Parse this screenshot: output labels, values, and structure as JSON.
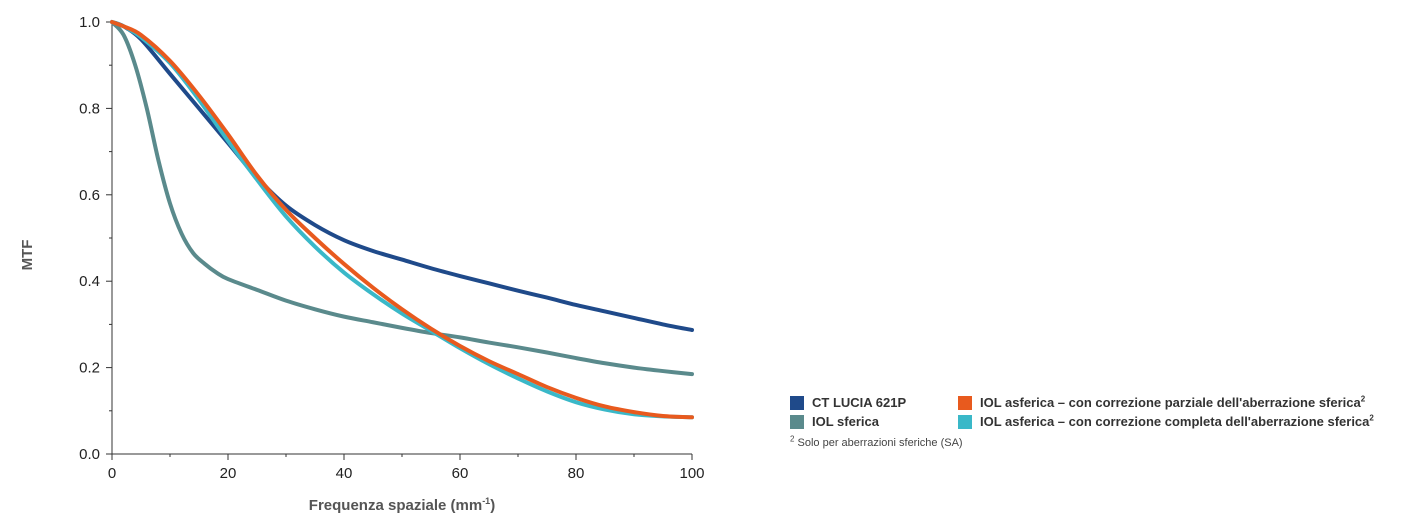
{
  "chart_data": {
    "type": "line",
    "xlabel": "Frequenza spaziale (mm",
    "xlabel_sup": "-1",
    "xlabel_suffix": ")",
    "ylabel": "MTF",
    "xlim": [
      0,
      100
    ],
    "ylim": [
      0,
      1
    ],
    "x_ticks": [
      "0",
      "20",
      "40",
      "60",
      "80",
      "100"
    ],
    "y_ticks": [
      "0.0",
      "0.2",
      "0.4",
      "0.6",
      "0.8",
      "1.0"
    ],
    "grid": false,
    "series": [
      {
        "name": "CT LUCIA 621P",
        "color": "#1f4a8a",
        "points": [
          [
            0,
            1.0
          ],
          [
            2,
            0.99
          ],
          [
            5,
            0.96
          ],
          [
            10,
            0.88
          ],
          [
            15,
            0.8
          ],
          [
            20,
            0.72
          ],
          [
            25,
            0.64
          ],
          [
            30,
            0.575
          ],
          [
            35,
            0.53
          ],
          [
            40,
            0.495
          ],
          [
            45,
            0.47
          ],
          [
            50,
            0.45
          ],
          [
            55,
            0.43
          ],
          [
            60,
            0.412
          ],
          [
            65,
            0.395
          ],
          [
            70,
            0.378
          ],
          [
            75,
            0.362
          ],
          [
            80,
            0.345
          ],
          [
            85,
            0.33
          ],
          [
            90,
            0.315
          ],
          [
            95,
            0.3
          ],
          [
            100,
            0.287
          ]
        ]
      },
      {
        "name": "IOL sferica",
        "color": "#5a8a8c",
        "points": [
          [
            0,
            1.0
          ],
          [
            2,
            0.97
          ],
          [
            4,
            0.9
          ],
          [
            6,
            0.8
          ],
          [
            8,
            0.68
          ],
          [
            10,
            0.58
          ],
          [
            12,
            0.51
          ],
          [
            14,
            0.465
          ],
          [
            16,
            0.44
          ],
          [
            18,
            0.42
          ],
          [
            20,
            0.405
          ],
          [
            25,
            0.38
          ],
          [
            30,
            0.355
          ],
          [
            35,
            0.335
          ],
          [
            40,
            0.318
          ],
          [
            45,
            0.305
          ],
          [
            50,
            0.292
          ],
          [
            55,
            0.28
          ],
          [
            60,
            0.27
          ],
          [
            65,
            0.258
          ],
          [
            70,
            0.247
          ],
          [
            75,
            0.235
          ],
          [
            80,
            0.222
          ],
          [
            85,
            0.21
          ],
          [
            90,
            0.2
          ],
          [
            95,
            0.192
          ],
          [
            100,
            0.185
          ]
        ]
      },
      {
        "name": "IOL asferica – con correzione parziale dell'aberrazione sferica",
        "name_sup": "2",
        "color": "#e85a1e",
        "points": [
          [
            0,
            1.0
          ],
          [
            2,
            0.99
          ],
          [
            5,
            0.97
          ],
          [
            10,
            0.91
          ],
          [
            15,
            0.83
          ],
          [
            20,
            0.74
          ],
          [
            25,
            0.645
          ],
          [
            30,
            0.565
          ],
          [
            35,
            0.5
          ],
          [
            40,
            0.44
          ],
          [
            45,
            0.385
          ],
          [
            50,
            0.335
          ],
          [
            55,
            0.29
          ],
          [
            60,
            0.25
          ],
          [
            65,
            0.215
          ],
          [
            70,
            0.185
          ],
          [
            75,
            0.155
          ],
          [
            80,
            0.13
          ],
          [
            85,
            0.11
          ],
          [
            90,
            0.097
          ],
          [
            95,
            0.088
          ],
          [
            100,
            0.085
          ]
        ]
      },
      {
        "name": "IOL asferica – con correzione completa dell'aberrazione sferica",
        "name_sup": "2",
        "color": "#3ab8c8",
        "points": [
          [
            0,
            1.0
          ],
          [
            2,
            0.99
          ],
          [
            5,
            0.965
          ],
          [
            10,
            0.905
          ],
          [
            15,
            0.82
          ],
          [
            20,
            0.725
          ],
          [
            25,
            0.635
          ],
          [
            30,
            0.55
          ],
          [
            35,
            0.48
          ],
          [
            40,
            0.42
          ],
          [
            45,
            0.37
          ],
          [
            50,
            0.325
          ],
          [
            55,
            0.285
          ],
          [
            60,
            0.245
          ],
          [
            65,
            0.208
          ],
          [
            70,
            0.175
          ],
          [
            75,
            0.145
          ],
          [
            80,
            0.12
          ],
          [
            85,
            0.103
          ],
          [
            90,
            0.092
          ],
          [
            95,
            0.087
          ],
          [
            100,
            0.085
          ]
        ]
      }
    ]
  },
  "footnote": {
    "sup": "2",
    "text": " Solo per aberrazioni sferiche (SA)"
  }
}
